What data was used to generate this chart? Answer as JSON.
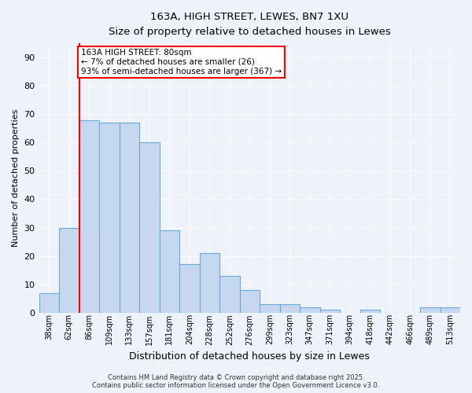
{
  "title_line1": "163A, HIGH STREET, LEWES, BN7 1XU",
  "title_line2": "Size of property relative to detached houses in Lewes",
  "xlabel": "Distribution of detached houses by size in Lewes",
  "ylabel": "Number of detached properties",
  "bar_labels": [
    "38sqm",
    "62sqm",
    "86sqm",
    "109sqm",
    "133sqm",
    "157sqm",
    "181sqm",
    "204sqm",
    "228sqm",
    "252sqm",
    "276sqm",
    "299sqm",
    "323sqm",
    "347sqm",
    "371sqm",
    "394sqm",
    "418sqm",
    "442sqm",
    "466sqm",
    "489sqm",
    "513sqm"
  ],
  "bar_values": [
    7,
    30,
    68,
    67,
    67,
    60,
    29,
    17,
    21,
    13,
    8,
    3,
    3,
    2,
    1,
    0,
    1,
    0,
    0,
    2,
    2
  ],
  "bar_color": "#c5d8f0",
  "bar_edge_color": "#6aaad4",
  "red_line_bar_index": 2,
  "annotation_text": "163A HIGH STREET: 80sqm\n← 7% of detached houses are smaller (26)\n93% of semi-detached houses are larger (367) →",
  "annotation_box_color": "white",
  "annotation_box_edge": "red",
  "ylim": [
    0,
    95
  ],
  "yticks": [
    0,
    10,
    20,
    30,
    40,
    50,
    60,
    70,
    80,
    90
  ],
  "background_color": "#eef2fa",
  "grid_color": "white",
  "footer_text": "Contains HM Land Registry data © Crown copyright and database right 2025.\nContains public sector information licensed under the Open Government Licence v3.0."
}
